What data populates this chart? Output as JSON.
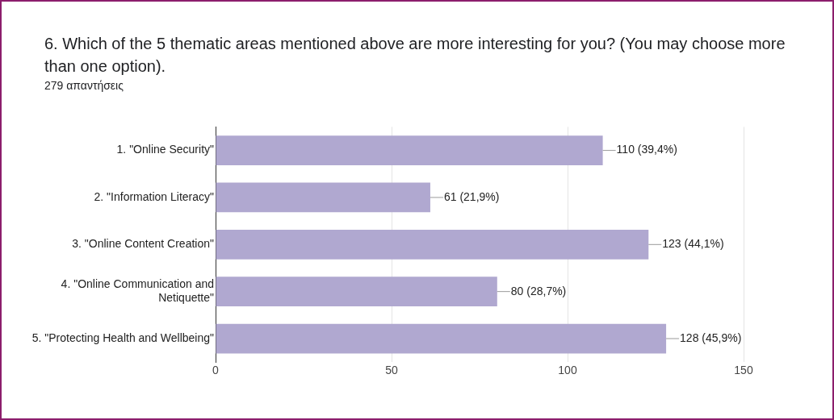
{
  "chart_data": {
    "type": "bar",
    "orientation": "horizontal",
    "title": "6. Which of the 5 thematic areas mentioned above are more interesting  for you? (You may choose more than one option).",
    "subtitle": "279 απαντήσεις",
    "categories": [
      "1. \"Online Security\"",
      "2. \"Information Literacy\"",
      "3. \"Online Content Creation\"",
      "4. \"Online Communication and Netiquette\"",
      "5. \"Protecting Health and Wellbeing\""
    ],
    "values": [
      110,
      61,
      123,
      80,
      128
    ],
    "value_labels": [
      "110 (39,4%)",
      "61 (21,9%)",
      "123 (44,1%)",
      "80 (28,7%)",
      "128 (45,9%)"
    ],
    "color": "#b0a8d0",
    "xlim": [
      0,
      150
    ],
    "xticks": [
      0,
      50,
      100,
      150
    ],
    "grid": "x",
    "legend": false
  }
}
